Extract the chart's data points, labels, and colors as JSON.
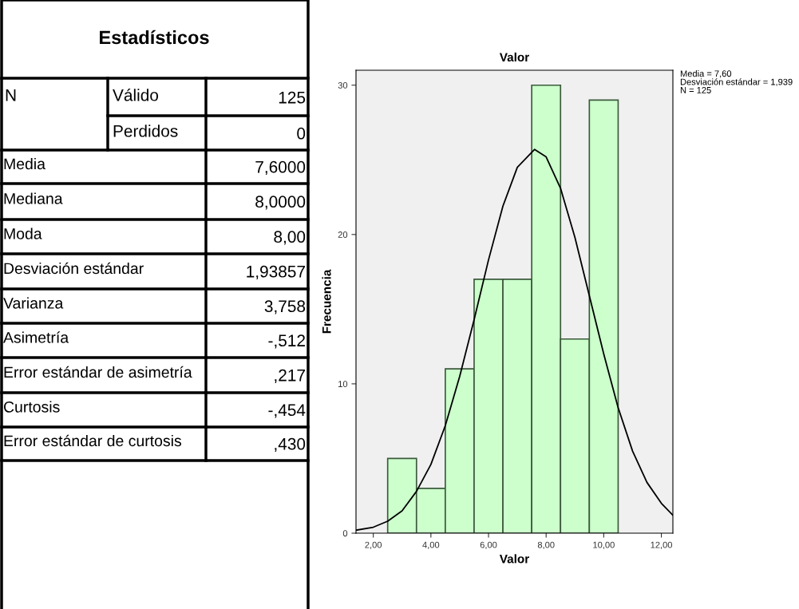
{
  "chart_data": [
    {
      "type": "other",
      "title": "Estadísticos",
      "annotations": [
        "N",
        "Válido",
        "125",
        "Perdidos",
        "0",
        "Media",
        "7,6000",
        "Mediana",
        "8,0000",
        "Moda",
        "8,00",
        "Desviación estándar",
        "1,93857",
        "Varianza",
        "3,758",
        "Asimetría",
        "-,512",
        "Error estándar de asimetría",
        ",217",
        "Curtosis",
        "-,454",
        "Error estándar de curtosis",
        ",430"
      ]
    },
    {
      "type": "histogram",
      "title": "Valor",
      "xlabel": "Valor",
      "ylabel": "Frecuencia",
      "bins": [
        2.5,
        3.5,
        4.5,
        5.5,
        6.5,
        7.5,
        8.5,
        9.5,
        10.5
      ],
      "values": [
        5,
        3,
        11,
        17,
        17,
        30,
        13,
        29
      ],
      "color": "#ccffcc",
      "series": [
        {
          "type": "line",
          "color": "#000000",
          "x": [
            1.4,
            2,
            2.5,
            3,
            3.5,
            4,
            4.5,
            5,
            5.5,
            6,
            6.5,
            7,
            7.6,
            8,
            8.5,
            9,
            9.5,
            10,
            10.5,
            11,
            11.5,
            12,
            12.4
          ],
          "values": [
            0.2,
            0.4,
            0.8,
            1.5,
            2.8,
            4.6,
            7.2,
            10.5,
            14.3,
            18.3,
            21.9,
            24.5,
            25.7,
            25.2,
            23.1,
            19.8,
            15.9,
            12.0,
            8.4,
            5.5,
            3.4,
            2.0,
            1.2
          ]
        }
      ],
      "xlim": [
        1.4,
        12.4
      ],
      "ylim": [
        0,
        31
      ],
      "xticks": [
        {
          "value": 2,
          "label": "2,00"
        },
        {
          "value": 4,
          "label": "4,00"
        },
        {
          "value": 6,
          "label": "6,00"
        },
        {
          "value": 8,
          "label": "8,00"
        },
        {
          "value": 10,
          "label": "10,00"
        },
        {
          "value": 12,
          "label": "12,00"
        }
      ],
      "yticks": [
        0,
        10,
        20,
        30
      ],
      "grid": false,
      "legend": false,
      "annotations": [
        "Media = 7,60",
        "Desviación estándar = 1,939",
        "N = 125"
      ]
    }
  ]
}
